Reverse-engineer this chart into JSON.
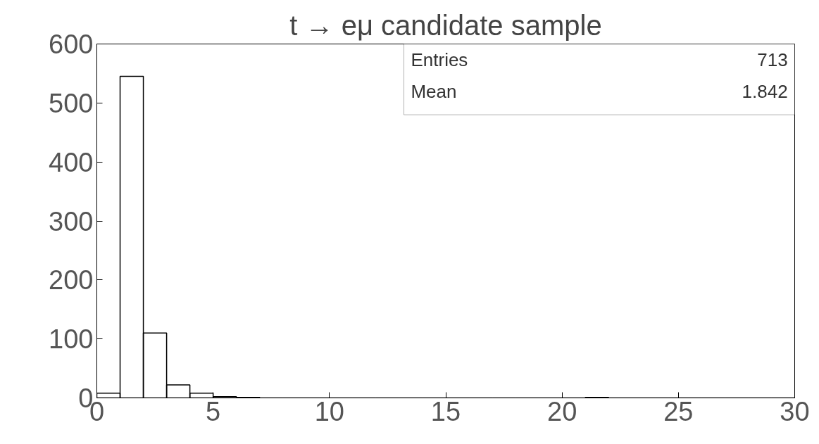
{
  "chart_data": {
    "type": "histogram",
    "title": "t → eμ candidate sample",
    "bins": [
      0,
      1,
      2,
      3,
      4,
      5,
      6,
      7,
      8,
      9,
      10,
      11,
      12,
      13,
      14,
      15,
      16,
      17,
      18,
      19,
      20,
      21,
      22,
      23,
      24,
      25,
      26,
      27,
      28,
      29,
      30
    ],
    "values": [
      8,
      545,
      110,
      22,
      8,
      2,
      1,
      0,
      0,
      0,
      0,
      0,
      0,
      0,
      0,
      0,
      0,
      0,
      0,
      0,
      0,
      1,
      0,
      0,
      0,
      0,
      0,
      0,
      0,
      0
    ],
    "color": "#000000",
    "xlim": [
      0,
      30
    ],
    "xticks": [
      0,
      5,
      10,
      15,
      20,
      25,
      30
    ],
    "ylim": [
      0,
      600
    ],
    "yticks": [
      0,
      100,
      200,
      300,
      400,
      500,
      600
    ],
    "annotations": [
      "Entries 713",
      "Mean 1.842"
    ],
    "grid": false
  }
}
